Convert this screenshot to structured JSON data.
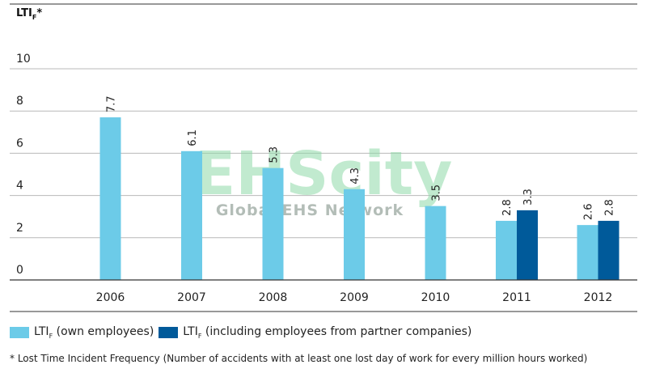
{
  "chart_data": {
    "type": "bar",
    "ylabel_main": "LTI",
    "ylabel_sub": "F",
    "ylabel_suffix": "*",
    "ylim": [
      0,
      10
    ],
    "yticks": [
      "0",
      "2",
      "4",
      "6",
      "8",
      "10"
    ],
    "grid": true,
    "categories": [
      "2006",
      "2007",
      "2008",
      "2009",
      "2010",
      "2011",
      "2012"
    ],
    "series": [
      {
        "name": "LTIF (own employees)",
        "color": "#6ccbe8",
        "values": [
          7.7,
          6.1,
          5.3,
          4.3,
          3.5,
          2.8,
          2.6
        ],
        "labels": [
          "7.7",
          "6.1",
          "5.3",
          "4.3",
          "3.5",
          "2.8",
          "2.6"
        ]
      },
      {
        "name": "LTIF (including employees from partner companies)",
        "color": "#005a9a",
        "values": [
          null,
          null,
          null,
          null,
          null,
          3.3,
          2.8
        ],
        "labels": [
          null,
          null,
          null,
          null,
          null,
          "3.3",
          "2.8"
        ]
      }
    ],
    "legend_position": "bottom"
  },
  "legend": {
    "own": {
      "prefix": "LTI",
      "sub": "F",
      "suffix": " (own employees)"
    },
    "partner": {
      "prefix": "LTI",
      "sub": "F",
      "suffix": " (including employees from partner companies)"
    }
  },
  "footnote": "* Lost Time Incident Frequency (Number of accidents with at least one lost day of work for every million hours worked)",
  "watermark": {
    "big": "EHScity",
    "small": "Global EHS Network"
  }
}
